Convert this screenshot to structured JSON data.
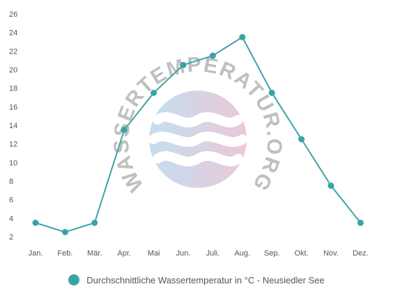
{
  "colors": {
    "series": "#3aa3a6",
    "legend_dot": "#3aa3a6",
    "watermark_blue": "#b9d9ee",
    "watermark_pink": "#e9bfd0",
    "watermark_text": "#b5b5b5"
  },
  "watermark": {
    "text": "WASSERTEMPERATUR.ORG",
    "icon": "waves-icon"
  },
  "chart_data": {
    "type": "line",
    "title": "",
    "xlabel": "",
    "ylabel": "",
    "categories": [
      "Jan.",
      "Feb.",
      "Mär.",
      "Apr.",
      "Mai",
      "Jun.",
      "Juli.",
      "Aug.",
      "Sep.",
      "Okt.",
      "Nov.",
      "Dez."
    ],
    "series": [
      {
        "name": "Durchschnittliche Wassertemperatur in °C - Neusiedler See",
        "values": [
          3.5,
          2.5,
          3.5,
          13.5,
          17.5,
          20.5,
          21.5,
          23.5,
          17.5,
          12.5,
          7.5,
          3.5
        ]
      }
    ],
    "y_ticks": [
      2,
      4,
      6,
      8,
      10,
      12,
      14,
      16,
      18,
      20,
      22,
      24,
      26
    ],
    "ylim": [
      2,
      26
    ],
    "grid": false,
    "legend_position": "bottom"
  }
}
